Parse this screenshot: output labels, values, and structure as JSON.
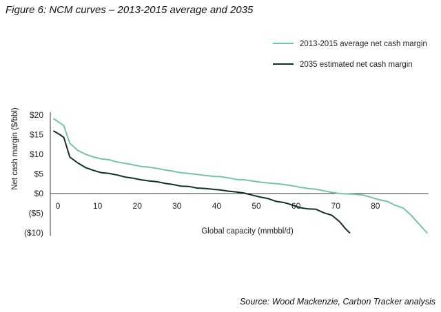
{
  "figure_title": "Figure 6: NCM curves – 2013-2015 average and 2035",
  "source_text": "Source: Wood Mackenzie, Carbon Tracker analysis",
  "colors": {
    "series_2013": "#72c4a6",
    "series_2035": "#0f2e2b",
    "axis": "#333333"
  },
  "chart_data": {
    "type": "line",
    "title": "NCM curves – 2013-2015 average and 2035",
    "xlabel": "Global capacity (mmbbl/d)",
    "ylabel": "Net cash margin ($/bbl)",
    "xlim": [
      0,
      93
    ],
    "ylim": [
      -10,
      20
    ],
    "x_ticks": [
      0,
      10,
      20,
      30,
      40,
      50,
      60,
      70,
      80
    ],
    "x_tick_labels": [
      "0",
      "10",
      "20",
      "30",
      "40",
      "50",
      "60",
      "70",
      "80"
    ],
    "y_ticks": [
      20,
      15,
      10,
      5,
      0,
      -5,
      -10
    ],
    "y_tick_labels": [
      "$20",
      "$15",
      "$10",
      "$5",
      "$0",
      "($5)",
      "($10)"
    ],
    "legend_position": "top-right",
    "series": [
      {
        "name": "2013-2015 average net cash margin",
        "color": "#72c4a6",
        "x": [
          -1,
          0.5,
          1.5,
          3,
          5,
          7,
          9,
          11,
          13,
          15,
          17,
          19,
          21,
          23,
          25,
          27,
          29,
          31,
          33,
          35,
          37,
          39,
          41,
          43,
          45,
          47,
          49,
          51,
          53,
          55,
          57,
          59,
          61,
          63,
          65,
          67,
          69,
          71,
          73,
          75,
          77,
          79,
          81,
          83,
          85,
          87,
          89,
          91,
          93
        ],
        "values": [
          19,
          18,
          17.3,
          12.8,
          11,
          10,
          9.3,
          8.8,
          8.6,
          8,
          7.7,
          7.3,
          6.9,
          6.7,
          6.4,
          6,
          5.7,
          5.3,
          5.1,
          4.9,
          4.6,
          4.4,
          4.3,
          4,
          3.6,
          3.5,
          3.2,
          2.9,
          2.7,
          2.5,
          2.3,
          2,
          1.6,
          1.3,
          1.1,
          0.7,
          0.3,
          0,
          -0.1,
          -0.2,
          -0.4,
          -1,
          -1.6,
          -2,
          -3,
          -3.7,
          -5.5,
          -7.8,
          -10
        ]
      },
      {
        "name": "2035 estimated net cash margin",
        "color": "#0f2e2b",
        "x": [
          -1,
          0.5,
          1.5,
          3,
          5,
          7,
          9,
          11,
          13,
          15,
          17,
          19,
          21,
          23,
          25,
          27,
          29,
          31,
          33,
          35,
          37,
          39,
          41,
          43,
          45,
          47,
          49,
          51,
          53,
          55,
          57,
          59,
          61,
          63,
          65,
          67,
          69,
          71,
          72.5,
          73.5
        ],
        "values": [
          15.9,
          15,
          14.3,
          9.3,
          7.8,
          6.6,
          5.9,
          5.3,
          5.1,
          4.7,
          4.2,
          3.9,
          3.5,
          3.2,
          3,
          2.6,
          2.3,
          1.9,
          1.8,
          1.4,
          1.3,
          1.1,
          0.9,
          0.6,
          0.4,
          0.1,
          -0.4,
          -0.9,
          -1.3,
          -2,
          -2.3,
          -2.9,
          -3.6,
          -3.9,
          -4,
          -4.9,
          -5.5,
          -7.2,
          -9,
          -10
        ]
      }
    ]
  }
}
